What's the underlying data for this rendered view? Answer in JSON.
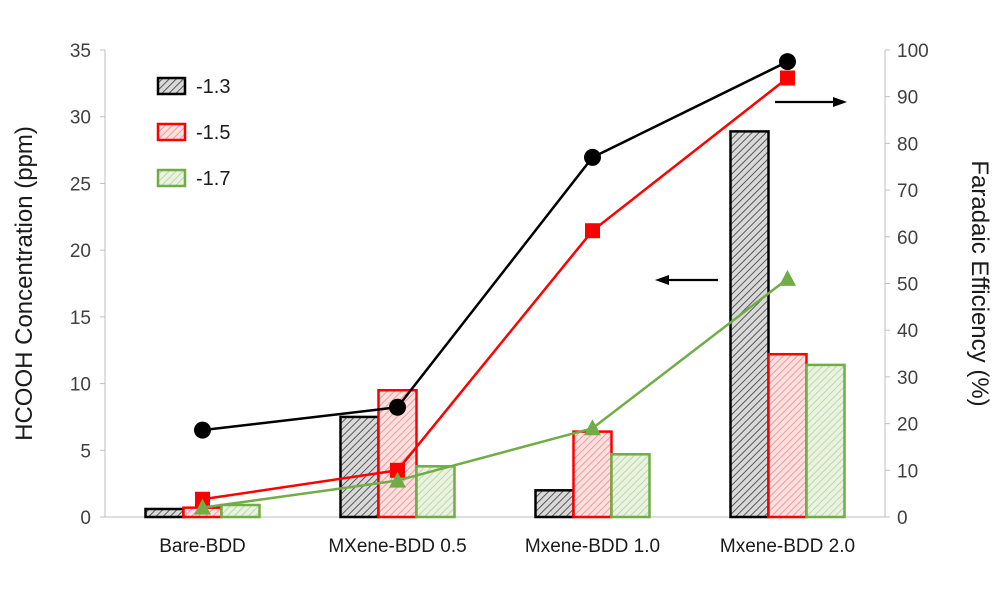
{
  "chart_data": {
    "type": "bar",
    "categories": [
      "Bare-BDD",
      "MXene-BDD 0.5",
      "Mxene-BDD 1.0",
      "Mxene-BDD 2.0"
    ],
    "ylabel": "HCOOH Concentration (ppm)",
    "y2label": "Faradaic Efficiency (%)",
    "ylim": [
      0,
      35
    ],
    "y2lim": [
      0,
      100
    ],
    "yticks": [
      "0",
      "5",
      "10",
      "15",
      "20",
      "25",
      "30",
      "35"
    ],
    "y2ticks": [
      "0",
      "10",
      "20",
      "30",
      "40",
      "50",
      "60",
      "70",
      "80",
      "90",
      "100"
    ],
    "legend_position": "top-left",
    "series": [
      {
        "name": "-1.3",
        "color": "#000000",
        "fill": "#bfbfbf",
        "marker": "circle",
        "bar_values": [
          0.6,
          7.5,
          2.0,
          28.9
        ],
        "line_values": [
          18.6,
          23.5,
          77.0,
          97.5
        ]
      },
      {
        "name": "-1.5",
        "color": "#ff0000",
        "fill": "#f7c6c6",
        "marker": "square",
        "bar_values": [
          0.7,
          9.5,
          6.4,
          12.2
        ],
        "line_values": [
          3.8,
          10.0,
          61.3,
          94.0
        ]
      },
      {
        "name": "-1.7",
        "color": "#70ad47",
        "fill": "#d6e8c8",
        "marker": "triangle",
        "bar_values": [
          0.9,
          3.8,
          4.7,
          11.4
        ],
        "line_values": [
          2.0,
          7.8,
          19.0,
          51.0
        ]
      }
    ],
    "annotations": [
      {
        "type": "arrow",
        "direction": "left",
        "axis": "y"
      },
      {
        "type": "arrow",
        "direction": "right",
        "axis": "y2"
      }
    ]
  }
}
